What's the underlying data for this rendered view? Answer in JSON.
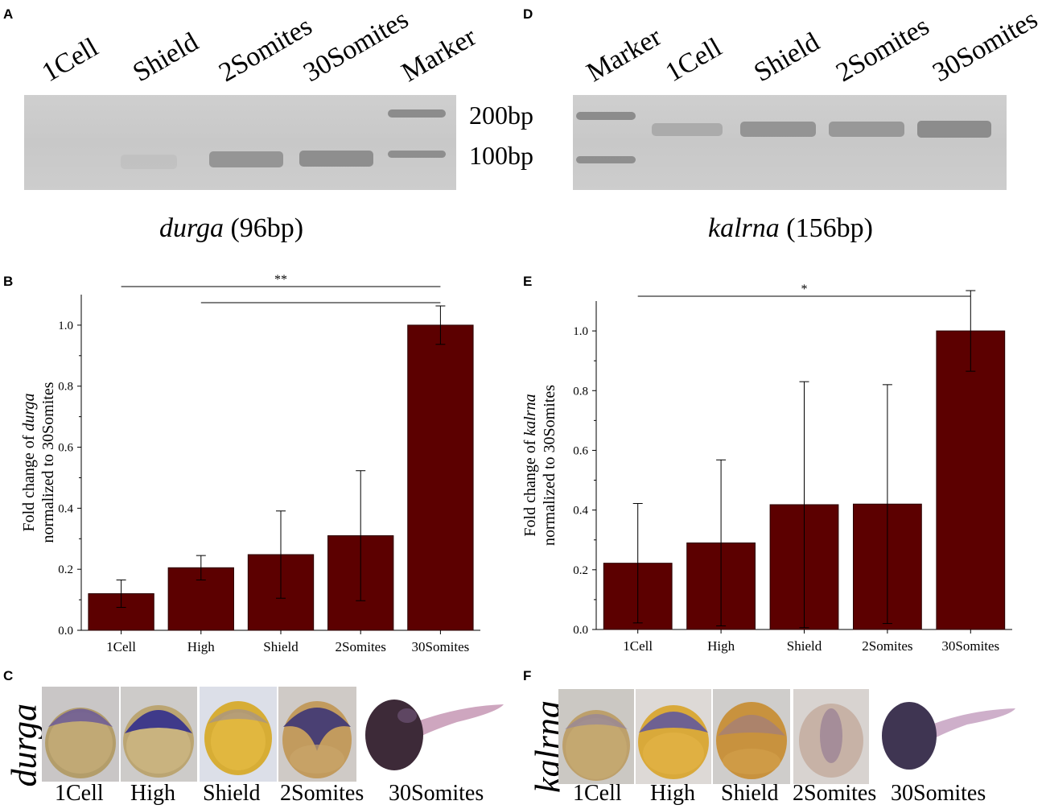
{
  "panels": {
    "A": "A",
    "B": "B",
    "C": "C",
    "D": "D",
    "E": "E",
    "F": "F"
  },
  "gel_left": {
    "lanes": [
      "1Cell",
      "Shield",
      "2Somites",
      "30Somites",
      "Marker"
    ],
    "size_labels": [
      "200bp",
      "100bp"
    ],
    "caption_gene": "durga",
    "caption_size": "(96bp)"
  },
  "gel_right": {
    "lanes": [
      "Marker",
      "1Cell",
      "Shield",
      "2Somites",
      "30Somites"
    ],
    "caption_gene": "kalrna",
    "caption_size": "(156bp)"
  },
  "chart_data": [
    {
      "type": "bar",
      "panel": "B",
      "categories": [
        "1Cell",
        "High",
        "Shield",
        "2Somites",
        "30Somites"
      ],
      "values": [
        0.12,
        0.205,
        0.248,
        0.31,
        1.0
      ],
      "errors": [
        0.045,
        0.04,
        0.143,
        0.213,
        0.063
      ],
      "ylabel_line1_pre": "Fold change of ",
      "ylabel_gene": "durga",
      "ylabel_line2": "normalized to 30Somites",
      "ylim": [
        0,
        1.1
      ],
      "yticks": [
        "0.0",
        "0.2",
        "0.4",
        "0.6",
        "0.8",
        "1.0"
      ],
      "significance": [
        {
          "from": "1Cell",
          "to": "30Somites",
          "label": "**"
        },
        {
          "from": "High",
          "to": "30Somites",
          "label": ""
        }
      ],
      "bar_color": "#5c0000"
    },
    {
      "type": "bar",
      "panel": "E",
      "categories": [
        "1Cell",
        "High",
        "Shield",
        "2Somites",
        "30Somites"
      ],
      "values": [
        0.222,
        0.29,
        0.418,
        0.42,
        1.0
      ],
      "errors": [
        0.2,
        0.278,
        0.412,
        0.4,
        0.135
      ],
      "ylabel_line1_pre": "Fold change of ",
      "ylabel_gene": "kalrna",
      "ylabel_line2": "normalized to 30Somites",
      "ylim": [
        0,
        1.1
      ],
      "yticks": [
        "0.0",
        "0.2",
        "0.4",
        "0.6",
        "0.8",
        "1.0"
      ],
      "significance": [
        {
          "from": "1Cell",
          "to": "30Somites",
          "label": "*"
        }
      ],
      "bar_color": "#5c0000"
    }
  ],
  "embryos_left": {
    "gene": "durga",
    "stages": [
      "1Cell",
      "High",
      "Shield",
      "2Somites",
      "30Somites"
    ]
  },
  "embryos_right": {
    "gene": "kalrna",
    "stages": [
      "1Cell",
      "High",
      "Shield",
      "2Somites",
      "30Somites"
    ]
  }
}
